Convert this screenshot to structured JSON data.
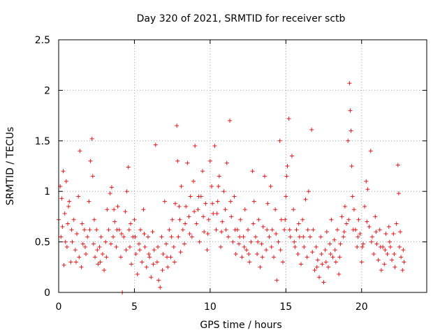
{
  "chart_data": {
    "type": "scatter",
    "title": "Day 320 of 2021, SRMTID for receiver sctb",
    "xlabel": "GPS time / hours",
    "ylabel": "SRMTID / TECUs",
    "xlim": [
      0,
      24.3
    ],
    "ylim": [
      0,
      2.5
    ],
    "xticks": [
      0,
      5,
      10,
      15,
      20
    ],
    "xtick_labels": [
      "0",
      "5",
      "10",
      "15",
      "20"
    ],
    "yticks": [
      0,
      0.5,
      1,
      1.5,
      2,
      2.5
    ],
    "ytick_labels": [
      "0",
      "0.5",
      "1",
      "1.5",
      "2",
      "2.5"
    ],
    "grid": true,
    "marker": "plus",
    "series": [
      {
        "name": "sctb",
        "color": "#e41a1c",
        "points": [
          [
            0.0,
            0.72
          ],
          [
            0.1,
            1.05
          ],
          [
            0.15,
            0.55
          ],
          [
            0.2,
            0.93
          ],
          [
            0.3,
            1.2
          ],
          [
            0.35,
            0.27
          ],
          [
            0.4,
            0.78
          ],
          [
            0.5,
            1.1
          ],
          [
            0.55,
            0.45
          ],
          [
            0.6,
            0.68
          ],
          [
            0.7,
            0.9
          ],
          [
            0.8,
            0.3
          ],
          [
            0.85,
            0.62
          ],
          [
            0.9,
            0.5
          ],
          [
            1.0,
            0.72
          ],
          [
            1.1,
            0.42
          ],
          [
            1.2,
            0.58
          ],
          [
            1.3,
            0.95
          ],
          [
            1.35,
            0.35
          ],
          [
            1.4,
            1.4
          ],
          [
            1.5,
            0.25
          ],
          [
            1.6,
            0.48
          ],
          [
            1.7,
            0.62
          ],
          [
            1.8,
            0.38
          ],
          [
            1.9,
            0.55
          ],
          [
            2.0,
            0.9
          ],
          [
            2.1,
            1.3
          ],
          [
            2.2,
            1.52
          ],
          [
            2.25,
            1.15
          ],
          [
            2.3,
            0.48
          ],
          [
            2.4,
            0.35
          ],
          [
            2.5,
            0.62
          ],
          [
            2.6,
            0.28
          ],
          [
            2.7,
            0.45
          ],
          [
            2.8,
            0.55
          ],
          [
            2.9,
            0.38
          ],
          [
            3.0,
            0.22
          ],
          [
            3.1,
            0.5
          ],
          [
            3.2,
            0.82
          ],
          [
            3.3,
            0.62
          ],
          [
            3.4,
            0.98
          ],
          [
            3.5,
            1.04
          ],
          [
            3.6,
            0.55
          ],
          [
            3.7,
            0.7
          ],
          [
            3.8,
            0.45
          ],
          [
            3.9,
            0.85
          ],
          [
            4.0,
            0.62
          ],
          [
            4.1,
            0.35
          ],
          [
            4.2,
            0.0
          ],
          [
            4.3,
            0.55
          ],
          [
            4.4,
            0.8
          ],
          [
            4.5,
            1.0
          ],
          [
            4.6,
            1.24
          ],
          [
            4.65,
            0.62
          ],
          [
            4.7,
            0.45
          ],
          [
            4.8,
            0.28
          ],
          [
            4.9,
            0.55
          ],
          [
            5.0,
            0.72
          ],
          [
            5.1,
            0.38
          ],
          [
            5.2,
            0.18
          ],
          [
            5.3,
            0.48
          ],
          [
            5.4,
            0.62
          ],
          [
            5.5,
            0.3
          ],
          [
            5.6,
            0.82
          ],
          [
            5.7,
            0.45
          ],
          [
            5.8,
            0.25
          ],
          [
            5.9,
            0.55
          ],
          [
            6.0,
            0.35
          ],
          [
            6.1,
            0.15
          ],
          [
            6.2,
            0.6
          ],
          [
            6.3,
            0.42
          ],
          [
            6.4,
            1.46
          ],
          [
            6.5,
            0.3
          ],
          [
            6.6,
            0.12
          ],
          [
            6.7,
            0.05
          ],
          [
            6.8,
            0.55
          ],
          [
            6.9,
            0.38
          ],
          [
            7.0,
            0.9
          ],
          [
            7.1,
            0.48
          ],
          [
            7.2,
            0.25
          ],
          [
            7.3,
            0.62
          ],
          [
            7.4,
            0.35
          ],
          [
            7.5,
            0.72
          ],
          [
            7.6,
            0.45
          ],
          [
            7.7,
            0.88
          ],
          [
            7.8,
            1.65
          ],
          [
            7.85,
            1.3
          ],
          [
            7.9,
            0.55
          ],
          [
            8.0,
            0.72
          ],
          [
            8.1,
            1.05
          ],
          [
            8.2,
            0.62
          ],
          [
            8.3,
            0.48
          ],
          [
            8.4,
            0.85
          ],
          [
            8.5,
            1.28
          ],
          [
            8.6,
            0.75
          ],
          [
            8.7,
            0.95
          ],
          [
            8.8,
            0.55
          ],
          [
            8.9,
            1.1
          ],
          [
            9.0,
            1.45
          ],
          [
            9.1,
            0.68
          ],
          [
            9.2,
            0.82
          ],
          [
            9.3,
            0.5
          ],
          [
            9.4,
            0.95
          ],
          [
            9.5,
            1.2
          ],
          [
            9.6,
            0.6
          ],
          [
            9.7,
            0.88
          ],
          [
            9.8,
            0.42
          ],
          [
            9.9,
            0.72
          ],
          [
            10.0,
            1.3
          ],
          [
            10.1,
            1.05
          ],
          [
            10.2,
            0.78
          ],
          [
            10.3,
            1.45
          ],
          [
            10.4,
            0.62
          ],
          [
            10.5,
            0.9
          ],
          [
            10.6,
            1.15
          ],
          [
            10.7,
            0.45
          ],
          [
            10.8,
            0.7
          ],
          [
            10.9,
            1.0
          ],
          [
            11.0,
            0.82
          ],
          [
            11.1,
            1.28
          ],
          [
            11.2,
            0.55
          ],
          [
            11.3,
            1.7
          ],
          [
            11.4,
            0.75
          ],
          [
            11.5,
            0.5
          ],
          [
            11.6,
            0.95
          ],
          [
            11.7,
            0.38
          ],
          [
            11.8,
            0.62
          ],
          [
            11.9,
            0.48
          ],
          [
            12.0,
            0.72
          ],
          [
            12.1,
            0.35
          ],
          [
            12.2,
            0.55
          ],
          [
            12.3,
            0.82
          ],
          [
            12.4,
            0.42
          ],
          [
            12.5,
            0.62
          ],
          [
            12.6,
            0.3
          ],
          [
            12.7,
            0.5
          ],
          [
            12.8,
            1.2
          ],
          [
            12.9,
            0.9
          ],
          [
            13.0,
            0.55
          ],
          [
            13.1,
            0.38
          ],
          [
            13.2,
            0.72
          ],
          [
            13.3,
            0.25
          ],
          [
            13.4,
            0.48
          ],
          [
            13.5,
            0.65
          ],
          [
            13.6,
            1.15
          ],
          [
            13.7,
            0.42
          ],
          [
            13.8,
            0.88
          ],
          [
            13.9,
            0.55
          ],
          [
            14.0,
            1.05
          ],
          [
            14.1,
            0.62
          ],
          [
            14.2,
            0.35
          ],
          [
            14.3,
            0.82
          ],
          [
            14.4,
            0.12
          ],
          [
            14.5,
            0.5
          ],
          [
            14.6,
            1.5
          ],
          [
            14.7,
            0.72
          ],
          [
            14.8,
            0.3
          ],
          [
            14.9,
            0.62
          ],
          [
            15.0,
            0.95
          ],
          [
            15.1,
            1.25
          ],
          [
            15.2,
            1.72
          ],
          [
            15.3,
            0.55
          ],
          [
            15.4,
            1.35
          ],
          [
            15.5,
            0.82
          ],
          [
            15.6,
            0.45
          ],
          [
            15.7,
            0.62
          ],
          [
            15.8,
            0.38
          ],
          [
            15.9,
            0.55
          ],
          [
            16.0,
            0.28
          ],
          [
            16.1,
            0.72
          ],
          [
            16.2,
            0.45
          ],
          [
            16.3,
            0.92
          ],
          [
            16.4,
            0.35
          ],
          [
            16.5,
            1.0
          ],
          [
            16.6,
            0.55
          ],
          [
            16.7,
            1.61
          ],
          [
            16.8,
            0.62
          ],
          [
            16.9,
            0.22
          ],
          [
            17.0,
            0.45
          ],
          [
            17.1,
            0.32
          ],
          [
            17.2,
            0.15
          ],
          [
            17.3,
            0.55
          ],
          [
            17.4,
            0.28
          ],
          [
            17.5,
            0.1
          ],
          [
            17.6,
            0.42
          ],
          [
            17.7,
            0.6
          ],
          [
            17.8,
            0.25
          ],
          [
            17.9,
            0.48
          ],
          [
            18.0,
            0.72
          ],
          [
            18.1,
            0.35
          ],
          [
            18.2,
            0.52
          ],
          [
            18.3,
            0.3
          ],
          [
            18.4,
            0.62
          ],
          [
            18.5,
            0.18
          ],
          [
            18.6,
            0.48
          ],
          [
            18.7,
            0.75
          ],
          [
            18.8,
            0.55
          ],
          [
            18.9,
            0.85
          ],
          [
            19.0,
            0.68
          ],
          [
            19.1,
            1.5
          ],
          [
            19.2,
            2.07
          ],
          [
            19.25,
            1.8
          ],
          [
            19.3,
            1.6
          ],
          [
            19.35,
            1.25
          ],
          [
            19.4,
            0.95
          ],
          [
            19.5,
            0.82
          ],
          [
            19.6,
            0.62
          ],
          [
            19.7,
            0.45
          ],
          [
            19.8,
            0.72
          ],
          [
            19.9,
            0.58
          ],
          [
            20.0,
            0.3
          ],
          [
            20.1,
            0.48
          ],
          [
            20.2,
            0.85
          ],
          [
            20.3,
            1.1
          ],
          [
            20.4,
            1.02
          ],
          [
            20.5,
            0.65
          ],
          [
            20.6,
            1.4
          ],
          [
            20.7,
            0.55
          ],
          [
            20.8,
            0.38
          ],
          [
            20.9,
            0.75
          ],
          [
            21.0,
            0.48
          ],
          [
            21.1,
            0.32
          ],
          [
            21.2,
            0.62
          ],
          [
            21.3,
            0.22
          ],
          [
            21.4,
            0.45
          ],
          [
            21.5,
            0.28
          ],
          [
            21.6,
            0.58
          ],
          [
            21.7,
            0.38
          ],
          [
            21.8,
            0.65
          ],
          [
            21.9,
            0.45
          ],
          [
            22.0,
            0.32
          ],
          [
            22.1,
            0.58
          ],
          [
            22.2,
            0.25
          ],
          [
            22.3,
            0.68
          ],
          [
            22.4,
            1.26
          ],
          [
            22.45,
            0.98
          ],
          [
            22.5,
            0.45
          ],
          [
            22.6,
            0.35
          ],
          [
            22.7,
            0.22
          ],
          [
            22.8,
            0.3
          ],
          [
            0.25,
            0.65
          ],
          [
            0.45,
            0.5
          ],
          [
            0.65,
            0.85
          ],
          [
            1.15,
            0.3
          ],
          [
            1.55,
            0.68
          ],
          [
            1.75,
            0.45
          ],
          [
            2.05,
            0.62
          ],
          [
            2.35,
            0.72
          ],
          [
            2.55,
            0.42
          ],
          [
            2.75,
            0.3
          ],
          [
            3.15,
            0.35
          ],
          [
            3.45,
            0.48
          ],
          [
            3.65,
            0.82
          ],
          [
            3.85,
            0.62
          ],
          [
            4.15,
            0.58
          ],
          [
            4.45,
            0.42
          ],
          [
            4.75,
            0.68
          ],
          [
            5.05,
            0.55
          ],
          [
            5.35,
            0.42
          ],
          [
            5.65,
            0.58
          ],
          [
            5.95,
            0.38
          ],
          [
            6.25,
            0.28
          ],
          [
            6.55,
            0.45
          ],
          [
            6.85,
            0.22
          ],
          [
            7.15,
            0.35
          ],
          [
            7.45,
            0.55
          ],
          [
            7.65,
            0.3
          ],
          [
            8.05,
            0.4
          ],
          [
            8.35,
            0.68
          ],
          [
            8.65,
            0.58
          ],
          [
            8.95,
            0.8
          ],
          [
            9.25,
            0.95
          ],
          [
            9.55,
            0.75
          ],
          [
            9.85,
            0.58
          ],
          [
            10.15,
            0.88
          ],
          [
            10.45,
            0.78
          ],
          [
            10.75,
            0.6
          ],
          [
            11.05,
            0.62
          ],
          [
            11.35,
            0.9
          ],
          [
            11.65,
            0.62
          ],
          [
            11.95,
            0.55
          ],
          [
            12.25,
            0.45
          ],
          [
            12.55,
            0.38
          ],
          [
            12.85,
            0.68
          ],
          [
            13.15,
            0.5
          ],
          [
            13.45,
            0.35
          ],
          [
            13.75,
            0.62
          ],
          [
            14.05,
            0.45
          ],
          [
            14.35,
            0.58
          ],
          [
            14.65,
            0.42
          ],
          [
            14.95,
            0.72
          ],
          [
            15.25,
            0.62
          ],
          [
            15.55,
            0.5
          ],
          [
            15.85,
            0.68
          ],
          [
            16.15,
            0.55
          ],
          [
            16.45,
            0.62
          ],
          [
            16.75,
            0.4
          ],
          [
            17.05,
            0.25
          ],
          [
            17.35,
            0.38
          ],
          [
            17.65,
            0.3
          ],
          [
            17.95,
            0.38
          ],
          [
            18.25,
            0.42
          ],
          [
            18.55,
            0.35
          ],
          [
            18.85,
            0.6
          ],
          [
            19.15,
            0.72
          ],
          [
            19.45,
            0.62
          ],
          [
            19.75,
            0.55
          ],
          [
            20.05,
            0.45
          ],
          [
            20.35,
            0.7
          ],
          [
            20.65,
            0.5
          ],
          [
            20.95,
            0.6
          ],
          [
            21.25,
            0.45
          ],
          [
            21.55,
            0.42
          ],
          [
            21.85,
            0.5
          ],
          [
            22.15,
            0.38
          ],
          [
            22.55,
            0.6
          ],
          [
            22.75,
            0.42
          ],
          [
            7.95,
            0.85
          ],
          [
            10.55,
            1.05
          ],
          [
            15.05,
            1.15
          ]
        ]
      }
    ]
  }
}
